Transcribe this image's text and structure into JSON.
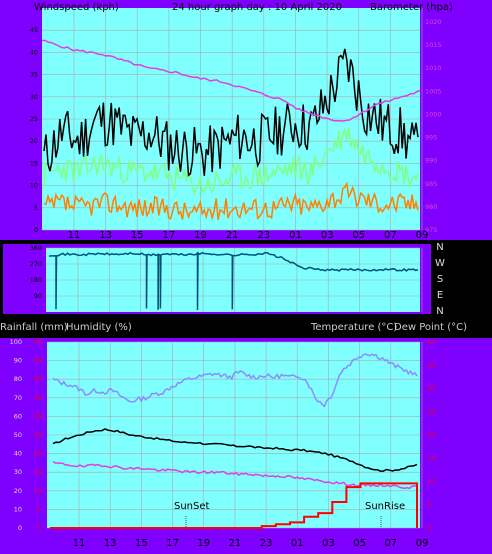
{
  "colors": {
    "frame": "#8000ff",
    "plot_bg": "#80ffff",
    "grid": "#aaaaaa",
    "gust": "#000000",
    "avg_wind": "#80ff80",
    "low_wind": "#ff8000",
    "barometer": "#e040e0",
    "direction": "#005078",
    "temperature": "#000000",
    "dew_point": "#e040e0",
    "humidity": "#8c8cff",
    "rainfall": "#ff0000",
    "rain_axis": "#ff0000",
    "temp_axis": "#ff0000"
  },
  "header": {
    "left": "Windspeed (kph)",
    "center": "24 hour graph day : 10 April 2020",
    "right": "Barometer (hpa)"
  },
  "compass": [
    "N",
    "W",
    "S",
    "E",
    "N"
  ],
  "middle_header": {
    "left": "Rainfall (mm)",
    "left2": "Humidity (%)",
    "right": "Temperature (°C)",
    "right2": "Dew Point (°C)"
  },
  "annotations": {
    "sunset": "SunSet",
    "sunrise": "SunRise"
  },
  "chart_data": [
    {
      "type": "line",
      "x_ticks": [
        "11",
        "13",
        "15",
        "17",
        "19",
        "21",
        "23",
        "01",
        "03",
        "05",
        "07",
        "09"
      ],
      "wind_axis": {
        "ticks": [
          "0",
          "5",
          "10",
          "15",
          "20",
          "25",
          "30",
          "35",
          "40",
          "45"
        ],
        "ylim": [
          0,
          50
        ]
      },
      "barometer_axis": {
        "ticks": [
          "975",
          "980",
          "985",
          "990",
          "995",
          "1000",
          "1005",
          "1010",
          "1015",
          "1020"
        ],
        "ylim": [
          975,
          1023
        ]
      },
      "series": [
        {
          "name": "gust",
          "values": [
            16,
            22,
            20,
            25,
            24,
            21,
            22,
            19,
            18,
            17,
            19,
            21,
            20,
            22,
            24,
            23,
            30,
            38,
            27,
            24,
            22,
            18
          ]
        },
        {
          "name": "avg",
          "values": [
            12,
            14,
            13,
            15,
            14,
            13,
            13,
            12,
            11,
            10,
            11,
            12,
            12,
            13,
            14,
            13,
            18,
            22,
            17,
            15,
            13,
            12
          ]
        },
        {
          "name": "low",
          "values": [
            5,
            6,
            5,
            6,
            6,
            5,
            5,
            5,
            4,
            4,
            5,
            5,
            5,
            5,
            6,
            5,
            7,
            8,
            7,
            6,
            6,
            6
          ]
        },
        {
          "name": "barometer",
          "values": [
            1016,
            1015,
            1014,
            1013.5,
            1013,
            1012,
            1011,
            1010,
            1009.5,
            1009,
            1008,
            1007.5,
            1007,
            1006,
            1005,
            1004,
            1003,
            1001,
            1000,
            999,
            998.5,
            1000,
            1002,
            1003,
            1004,
            1005
          ]
        }
      ]
    },
    {
      "type": "line",
      "ylim": [
        0,
        360
      ],
      "ticks": [
        "360",
        "270",
        "180",
        "90"
      ],
      "series": [
        {
          "name": "direction",
          "values": [
            320,
            325,
            322,
            328,
            324,
            330,
            320,
            326,
            322,
            328,
            326,
            320,
            324,
            330,
            300,
            250,
            240,
            235,
            238,
            236,
            240,
            237,
            238
          ]
        }
      ]
    },
    {
      "type": "line",
      "x_ticks": [
        "11",
        "13",
        "15",
        "17",
        "19",
        "21",
        "23",
        "01",
        "03",
        "05",
        "07",
        "09"
      ],
      "left_axis": {
        "ticks": [
          "0",
          "10",
          "20",
          "30",
          "40",
          "50",
          "60",
          "70",
          "80",
          "90",
          "100"
        ],
        "ylim": [
          0,
          100
        ]
      },
      "rain_axis": {
        "ticks": [
          "0",
          "5",
          "10",
          "15",
          "20",
          "25",
          "30",
          "35",
          "40",
          "45",
          "50"
        ]
      },
      "temp_axis": {
        "ticks": [
          "0",
          "5",
          "10",
          "15",
          "20",
          "25",
          "30",
          "35",
          "40"
        ]
      },
      "series": [
        {
          "name": "humidity",
          "values": [
            80,
            78,
            77,
            75,
            72,
            74,
            73,
            74,
            71,
            68,
            69,
            70,
            72,
            73,
            76,
            78,
            80,
            81,
            82,
            83,
            82,
            81,
            84,
            82,
            81,
            82,
            81,
            82,
            81,
            82,
            79,
            70,
            66,
            72,
            84,
            88,
            92,
            94,
            93,
            91,
            88,
            86,
            84,
            82
          ]
        },
        {
          "name": "temperature",
          "values": [
            45,
            48,
            50,
            52,
            53,
            52,
            50,
            49,
            48,
            47,
            46,
            46,
            45,
            45,
            44,
            44,
            43,
            43,
            42,
            42,
            41,
            40,
            38,
            36,
            33,
            31,
            31,
            32,
            34
          ]
        },
        {
          "name": "dew_point",
          "values": [
            35,
            34,
            33,
            34,
            33,
            32,
            32,
            31,
            31,
            30,
            30,
            30,
            29,
            29,
            28,
            28,
            27,
            26,
            25,
            24,
            23,
            23,
            23,
            22,
            22
          ]
        },
        {
          "name": "rainfall",
          "values": [
            0,
            0,
            0,
            0,
            0,
            0,
            0,
            0,
            0,
            0,
            0,
            0,
            0,
            0,
            0,
            0.5,
            1,
            1.5,
            3,
            4,
            7,
            11,
            12,
            12,
            12,
            12,
            0
          ]
        }
      ]
    }
  ]
}
